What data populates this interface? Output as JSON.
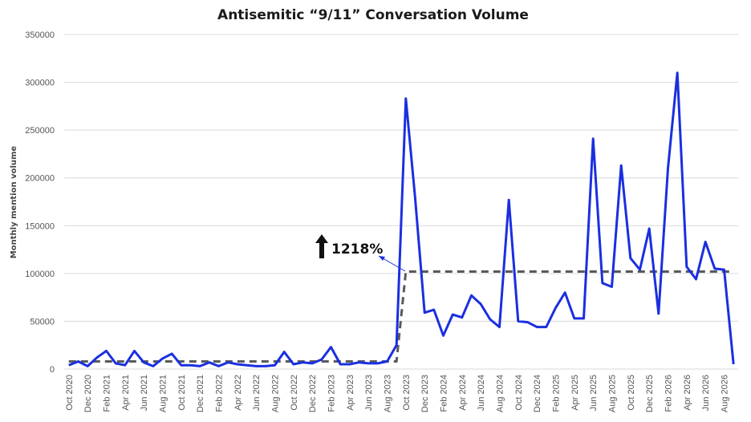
{
  "chart_data": {
    "type": "line",
    "title": "Antisemitic “9/11” Conversation Volume",
    "xlabel": "",
    "ylabel": "Monthly mention volume",
    "ylim": [
      0,
      350000
    ],
    "yticks": [
      0,
      50000,
      100000,
      150000,
      200000,
      250000,
      300000,
      350000
    ],
    "grid": "horizontal",
    "legend": "none",
    "x_tick_labels": [
      "Oct 2020",
      "Dec 2020",
      "Feb 2021",
      "Apr 2021",
      "Jun 2021",
      "Aug 2021",
      "Oct 2021",
      "Dec 2021",
      "Feb 2022",
      "Apr 2022",
      "Jun 2022",
      "Aug 2022",
      "Oct 2022",
      "Dec 2022",
      "Feb 2023",
      "Apr 2023",
      "Jun 2023",
      "Aug 2023",
      "Oct 2023",
      "Dec 2023",
      "Feb 2024",
      "Apr 2024",
      "Jun 2024",
      "Aug 2024",
      "Oct 2024",
      "Dec 2024",
      "Feb 2025",
      "Apr 2025",
      "Jun 2025",
      "Aug 2025",
      "Oct 2025",
      "Dec 2025",
      "Feb 2026",
      "Apr 2026",
      "Jun 2026",
      "Aug 2026"
    ],
    "series": [
      {
        "color": "#1a2fe0",
        "values": [
          4000,
          8000,
          3000,
          12000,
          19000,
          6000,
          4000,
          19000,
          7000,
          3000,
          11000,
          16000,
          4000,
          4000,
          3000,
          7000,
          3000,
          7000,
          5000,
          4000,
          3000,
          3000,
          4000,
          18000,
          5000,
          7000,
          6000,
          10000,
          23000,
          5000,
          5000,
          7000,
          6000,
          6000,
          8000,
          25000,
          283000,
          178000,
          59000,
          62000,
          35000,
          57000,
          54000,
          77000,
          68000,
          52000,
          44000,
          177000,
          50000,
          49000,
          44000,
          44000,
          64000,
          80000,
          53000,
          53000,
          241000,
          90000,
          86000,
          213000,
          116000,
          104000,
          147000,
          58000,
          210000,
          310000,
          107000,
          94000,
          133000,
          105000,
          104000,
          5000
        ]
      },
      {
        "style": "dashed",
        "color": "#5a5a5a",
        "values": [
          8000,
          8000,
          8000,
          8000,
          8000,
          8000,
          8000,
          8000,
          8000,
          8000,
          8000,
          8000,
          8000,
          8000,
          8000,
          8000,
          8000,
          8000,
          8000,
          8000,
          8000,
          8000,
          8000,
          8000,
          8000,
          8000,
          8000,
          8000,
          8000,
          8000,
          8000,
          8000,
          8000,
          8000,
          8000,
          8000,
          102000,
          102000,
          102000,
          102000,
          102000,
          102000,
          102000,
          102000,
          102000,
          102000,
          102000,
          102000,
          102000,
          102000,
          102000,
          102000,
          102000,
          102000,
          102000,
          102000,
          102000,
          102000,
          102000,
          102000,
          102000,
          102000,
          102000,
          102000,
          102000,
          102000,
          102000,
          102000,
          102000,
          102000,
          102000,
          102000
        ]
      }
    ],
    "annotation": {
      "text": "1218%",
      "icon": "up-arrow-icon",
      "points_to_month_index": 35
    }
  }
}
